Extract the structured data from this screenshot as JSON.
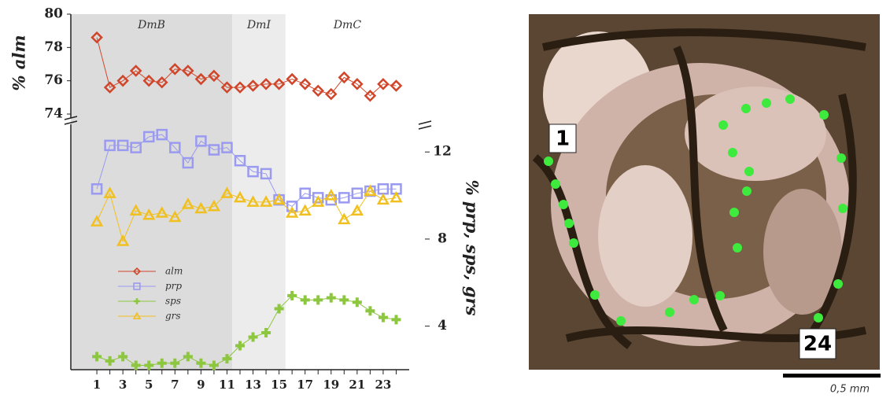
{
  "chart_data": {
    "type": "line",
    "ylabel": "% alm",
    "y2label": "% prp, sps, grs",
    "x": [
      1,
      2,
      3,
      4,
      5,
      6,
      7,
      8,
      9,
      10,
      11,
      12,
      13,
      14,
      15,
      16,
      17,
      18,
      19,
      20,
      21,
      22,
      23,
      24
    ],
    "xlim": [
      -1,
      25
    ],
    "xticks": [
      1,
      3,
      5,
      7,
      9,
      11,
      13,
      15,
      17,
      19,
      21,
      23
    ],
    "ylim": [
      73.5,
      80
    ],
    "yticks": [
      74,
      76,
      78,
      80
    ],
    "y2lim": [
      2,
      13.2
    ],
    "y2ticks": [
      4,
      8,
      12
    ],
    "zones": [
      {
        "label": "DmB",
        "x": [
          -1,
          11.4
        ],
        "color": "#dcdcdc"
      },
      {
        "label": "DmI",
        "x": [
          11.4,
          15.5
        ],
        "color": "#ececec"
      },
      {
        "label": "DmC",
        "x": [
          15.5,
          25
        ],
        "color": "#ffffff"
      }
    ],
    "series": [
      {
        "name": "alm",
        "color": "#d0462b",
        "marker": "diamond",
        "axis": "y",
        "values": [
          78.6,
          75.6,
          76.0,
          76.6,
          76.0,
          75.9,
          76.7,
          76.6,
          76.1,
          76.3,
          75.6,
          75.6,
          75.7,
          75.8,
          75.8,
          76.1,
          75.8,
          75.4,
          75.2,
          76.2,
          75.8,
          75.1,
          75.8,
          75.7
        ]
      },
      {
        "name": "prp",
        "color": "#9a9af0",
        "marker": "square",
        "axis": "y2",
        "values": [
          10.3,
          12.3,
          12.3,
          12.2,
          12.7,
          12.8,
          12.2,
          11.5,
          12.5,
          12.1,
          12.2,
          11.6,
          11.1,
          11.0,
          9.8,
          9.5,
          10.1,
          9.9,
          9.8,
          9.9,
          10.1,
          10.2,
          10.3,
          10.3
        ]
      },
      {
        "name": "sps",
        "color": "#8dc63f",
        "marker": "plus",
        "axis": "y2",
        "values": [
          2.6,
          2.4,
          2.6,
          2.2,
          2.2,
          2.3,
          2.3,
          2.6,
          2.3,
          2.2,
          2.5,
          3.1,
          3.5,
          3.7,
          4.8,
          5.4,
          5.2,
          5.2,
          5.3,
          5.2,
          5.1,
          4.7,
          4.4,
          4.3
        ]
      },
      {
        "name": "grs",
        "color": "#f0c020",
        "marker": "triangle",
        "axis": "y2",
        "values": [
          8.8,
          10.1,
          7.9,
          9.3,
          9.1,
          9.2,
          9.0,
          9.6,
          9.4,
          9.5,
          10.1,
          9.9,
          9.7,
          9.7,
          9.8,
          9.2,
          9.3,
          9.7,
          10.0,
          8.9,
          9.3,
          10.2,
          9.8,
          9.9
        ]
      }
    ]
  },
  "image": {
    "point_labels": [
      "1",
      "24"
    ],
    "scale_bar": "0,5 mm"
  }
}
